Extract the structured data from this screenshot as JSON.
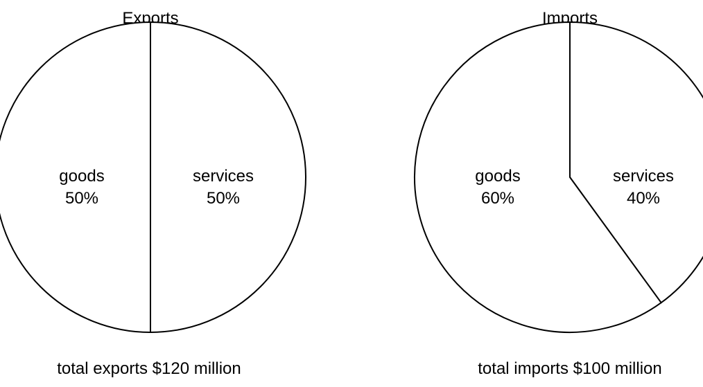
{
  "chart_data": [
    {
      "type": "pie",
      "title": "Exports",
      "caption": "total exports $120 million",
      "slices": [
        {
          "label": "goods",
          "percent_label": "50%",
          "value": 50
        },
        {
          "label": "services",
          "percent_label": "50%",
          "value": 50
        }
      ]
    },
    {
      "type": "pie",
      "title": "Imports",
      "caption": "total imports $100 million",
      "slices": [
        {
          "label": "goods",
          "percent_label": "60%",
          "value": 60
        },
        {
          "label": "services",
          "percent_label": "40%",
          "value": 40
        }
      ]
    }
  ]
}
